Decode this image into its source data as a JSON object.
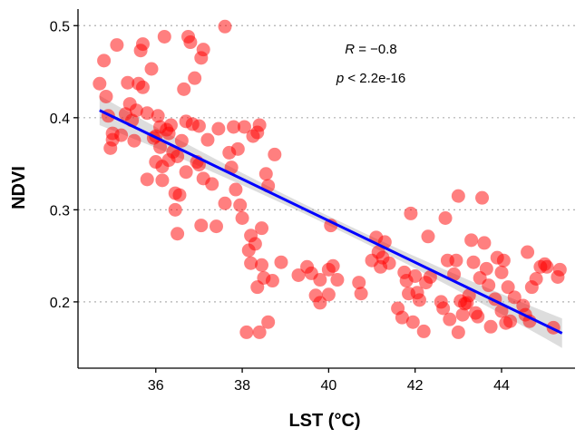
{
  "chart_data": {
    "type": "scatter",
    "title": "",
    "xlabel": "LST (°C)",
    "ylabel": "NDVI",
    "xlim": [
      34.2,
      45.7
    ],
    "ylim": [
      0.128,
      0.518
    ],
    "xticks": [
      36,
      38,
      40,
      42,
      44
    ],
    "yticks": [
      0.2,
      0.3,
      0.4,
      0.5
    ],
    "grid": "horizontal-dotted",
    "point_color": "#ff0000",
    "line_color": "#0000ff",
    "band_color": "#b3b3b3",
    "annotation": {
      "r_label": "R = −0.8",
      "p_label": "p < 2.2e-16"
    },
    "regression": {
      "x": [
        34.7,
        45.4
      ],
      "y": [
        0.408,
        0.166
      ]
    },
    "points": [
      [
        34.7,
        0.437
      ],
      [
        34.8,
        0.462
      ],
      [
        34.85,
        0.423
      ],
      [
        34.9,
        0.402
      ],
      [
        34.95,
        0.367
      ],
      [
        35.0,
        0.383
      ],
      [
        35.0,
        0.376
      ],
      [
        35.1,
        0.479
      ],
      [
        35.2,
        0.381
      ],
      [
        35.3,
        0.404
      ],
      [
        35.35,
        0.438
      ],
      [
        35.4,
        0.415
      ],
      [
        35.45,
        0.397
      ],
      [
        35.5,
        0.375
      ],
      [
        35.55,
        0.408
      ],
      [
        35.6,
        0.437
      ],
      [
        35.65,
        0.473
      ],
      [
        35.7,
        0.433
      ],
      [
        35.7,
        0.48
      ],
      [
        35.8,
        0.405
      ],
      [
        35.8,
        0.333
      ],
      [
        35.9,
        0.453
      ],
      [
        35.95,
        0.378
      ],
      [
        36.0,
        0.38
      ],
      [
        36.0,
        0.352
      ],
      [
        36.05,
        0.402
      ],
      [
        36.1,
        0.39
      ],
      [
        36.1,
        0.368
      ],
      [
        36.15,
        0.347
      ],
      [
        36.15,
        0.332
      ],
      [
        36.2,
        0.488
      ],
      [
        36.25,
        0.387
      ],
      [
        36.3,
        0.354
      ],
      [
        36.3,
        0.383
      ],
      [
        36.35,
        0.392
      ],
      [
        36.4,
        0.363
      ],
      [
        36.45,
        0.318
      ],
      [
        36.45,
        0.3
      ],
      [
        36.5,
        0.358
      ],
      [
        36.5,
        0.274
      ],
      [
        36.55,
        0.316
      ],
      [
        36.6,
        0.375
      ],
      [
        36.65,
        0.431
      ],
      [
        36.7,
        0.396
      ],
      [
        36.7,
        0.341
      ],
      [
        36.75,
        0.488
      ],
      [
        36.8,
        0.482
      ],
      [
        36.85,
        0.393
      ],
      [
        36.9,
        0.443
      ],
      [
        36.95,
        0.352
      ],
      [
        37.0,
        0.349
      ],
      [
        37.0,
        0.391
      ],
      [
        37.05,
        0.465
      ],
      [
        37.05,
        0.283
      ],
      [
        37.1,
        0.474
      ],
      [
        37.1,
        0.334
      ],
      [
        37.2,
        0.376
      ],
      [
        37.3,
        0.328
      ],
      [
        37.4,
        0.282
      ],
      [
        37.45,
        0.388
      ],
      [
        37.6,
        0.499
      ],
      [
        37.6,
        0.307
      ],
      [
        37.7,
        0.362
      ],
      [
        37.75,
        0.346
      ],
      [
        37.8,
        0.39
      ],
      [
        37.85,
        0.322
      ],
      [
        37.9,
        0.366
      ],
      [
        37.95,
        0.305
      ],
      [
        38.0,
        0.291
      ],
      [
        38.05,
        0.39
      ],
      [
        38.1,
        0.167
      ],
      [
        38.15,
        0.256
      ],
      [
        38.2,
        0.242
      ],
      [
        38.2,
        0.272
      ],
      [
        38.25,
        0.38
      ],
      [
        38.3,
        0.263
      ],
      [
        38.35,
        0.384
      ],
      [
        38.35,
        0.216
      ],
      [
        38.4,
        0.167
      ],
      [
        38.4,
        0.392
      ],
      [
        38.45,
        0.24
      ],
      [
        38.45,
        0.28
      ],
      [
        38.5,
        0.226
      ],
      [
        38.55,
        0.339
      ],
      [
        38.6,
        0.326
      ],
      [
        38.6,
        0.178
      ],
      [
        38.7,
        0.223
      ],
      [
        38.75,
        0.36
      ],
      [
        38.9,
        0.243
      ],
      [
        39.3,
        0.229
      ],
      [
        39.5,
        0.238
      ],
      [
        39.6,
        0.231
      ],
      [
        39.7,
        0.207
      ],
      [
        39.8,
        0.199
      ],
      [
        39.8,
        0.224
      ],
      [
        40.0,
        0.235
      ],
      [
        40.0,
        0.208
      ],
      [
        40.05,
        0.283
      ],
      [
        40.1,
        0.239
      ],
      [
        40.2,
        0.224
      ],
      [
        40.7,
        0.221
      ],
      [
        40.75,
        0.209
      ],
      [
        41.0,
        0.245
      ],
      [
        41.1,
        0.27
      ],
      [
        41.15,
        0.254
      ],
      [
        41.2,
        0.238
      ],
      [
        41.25,
        0.248
      ],
      [
        41.3,
        0.265
      ],
      [
        41.4,
        0.242
      ],
      [
        41.6,
        0.193
      ],
      [
        41.7,
        0.183
      ],
      [
        41.75,
        0.232
      ],
      [
        41.8,
        0.223
      ],
      [
        41.85,
        0.209
      ],
      [
        41.9,
        0.296
      ],
      [
        41.95,
        0.178
      ],
      [
        42.0,
        0.228
      ],
      [
        42.05,
        0.21
      ],
      [
        42.1,
        0.202
      ],
      [
        42.2,
        0.168
      ],
      [
        42.25,
        0.221
      ],
      [
        42.3,
        0.271
      ],
      [
        42.35,
        0.227
      ],
      [
        42.6,
        0.2
      ],
      [
        42.65,
        0.193
      ],
      [
        42.7,
        0.291
      ],
      [
        42.75,
        0.245
      ],
      [
        42.8,
        0.181
      ],
      [
        42.9,
        0.23
      ],
      [
        42.95,
        0.245
      ],
      [
        43.0,
        0.167
      ],
      [
        43.0,
        0.315
      ],
      [
        43.05,
        0.201
      ],
      [
        43.1,
        0.186
      ],
      [
        43.15,
        0.198
      ],
      [
        43.2,
        0.199
      ],
      [
        43.25,
        0.207
      ],
      [
        43.3,
        0.267
      ],
      [
        43.35,
        0.243
      ],
      [
        43.4,
        0.188
      ],
      [
        43.45,
        0.184
      ],
      [
        43.5,
        0.226
      ],
      [
        43.55,
        0.313
      ],
      [
        43.6,
        0.264
      ],
      [
        43.65,
        0.236
      ],
      [
        43.7,
        0.218
      ],
      [
        43.75,
        0.173
      ],
      [
        43.85,
        0.203
      ],
      [
        43.9,
        0.248
      ],
      [
        44.0,
        0.232
      ],
      [
        44.0,
        0.19
      ],
      [
        44.05,
        0.245
      ],
      [
        44.1,
        0.177
      ],
      [
        44.15,
        0.216
      ],
      [
        44.2,
        0.179
      ],
      [
        44.3,
        0.205
      ],
      [
        44.5,
        0.196
      ],
      [
        44.55,
        0.186
      ],
      [
        44.6,
        0.254
      ],
      [
        44.65,
        0.179
      ],
      [
        44.7,
        0.216
      ],
      [
        44.8,
        0.225
      ],
      [
        44.9,
        0.238
      ],
      [
        45.0,
        0.241
      ],
      [
        45.05,
        0.238
      ],
      [
        45.2,
        0.172
      ],
      [
        45.3,
        0.227
      ],
      [
        45.35,
        0.235
      ]
    ]
  }
}
